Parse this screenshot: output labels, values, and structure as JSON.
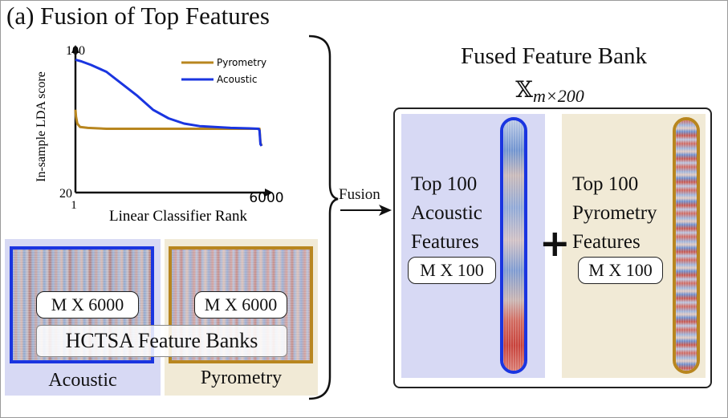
{
  "title": "(a) Fusion of Top Features",
  "chart_data": {
    "type": "line",
    "xlabel": "Linear Classifier Rank",
    "ylabel": "In-sample LDA score",
    "x_tick_labels": [
      "1",
      "6000"
    ],
    "y_tick_labels": [
      "20",
      "100"
    ],
    "xlim": [
      1,
      6000
    ],
    "ylim": [
      20,
      100
    ],
    "legend_position": "top-right",
    "series": [
      {
        "name": "Pyrometry",
        "color": "#b8861f",
        "x": [
          1,
          20,
          60,
          150,
          400,
          1000,
          2000,
          3000,
          4000,
          5000,
          5600,
          5900,
          5930,
          5960,
          6000
        ],
        "y": [
          68,
          64,
          60,
          58,
          57.5,
          57,
          57,
          57,
          57,
          57,
          57,
          57,
          57,
          49,
          47
        ]
      },
      {
        "name": "Acoustic",
        "color": "#1a35e0",
        "x": [
          1,
          200,
          500,
          1000,
          1500,
          2000,
          2500,
          3000,
          3500,
          4000,
          5000,
          5600,
          5900,
          5930,
          5960,
          6000
        ],
        "y": [
          97,
          96,
          94,
          90,
          83,
          76,
          68,
          63,
          60,
          58.5,
          57.5,
          57.2,
          57,
          56,
          48,
          47
        ]
      }
    ]
  },
  "panels": {
    "acoustic": {
      "label": "Acoustic",
      "size": "M X 6000",
      "color": "#1a35e0"
    },
    "pyrometry": {
      "label": "Pyrometry",
      "size": "M X 6000",
      "color": "#b8861f"
    },
    "banner": "HCTSA Feature Banks"
  },
  "fusion_label": "Fusion",
  "fused": {
    "title": "Fused Feature Bank",
    "math_symbol": "𝕏",
    "math_subscript": "m×200",
    "acoustic": {
      "line1": "Top 100",
      "line2": "Acoustic",
      "line3": "Features",
      "size": "M X 100"
    },
    "pyrometry": {
      "line1": "Top 100",
      "line2": "Pyrometry",
      "line3": "Features",
      "size": "M X 100"
    },
    "plus": "+"
  }
}
